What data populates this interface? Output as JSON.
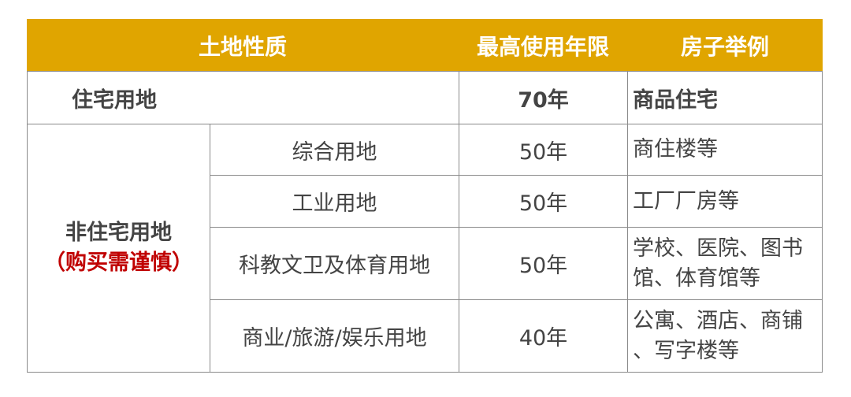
{
  "header": {
    "land_type": "土地性质",
    "max_years": "最高使用年限",
    "examples": "房子举例"
  },
  "residential": {
    "label": "住宅用地",
    "years": "70年",
    "example": "商品住宅"
  },
  "non_residential": {
    "label": "非住宅用地",
    "warning": "（购买需谨慎）",
    "rows": [
      {
        "type": "综合用地",
        "years": "50年",
        "example": [
          "商住楼等"
        ]
      },
      {
        "type": "工业用地",
        "years": "50年",
        "example": [
          "工厂厂房等"
        ]
      },
      {
        "type": "科教文卫及体育用地",
        "years": "50年",
        "example": [
          "学校、医院、图书",
          "馆、体育馆等"
        ]
      },
      {
        "type": "商业/旅游/娱乐用地",
        "years": "40年",
        "example": [
          "公寓、酒店、商铺",
          "、写字楼等"
        ]
      }
    ]
  },
  "colors": {
    "header_bg": "#E0A500",
    "warning": "#C00000",
    "text": "#444444"
  }
}
